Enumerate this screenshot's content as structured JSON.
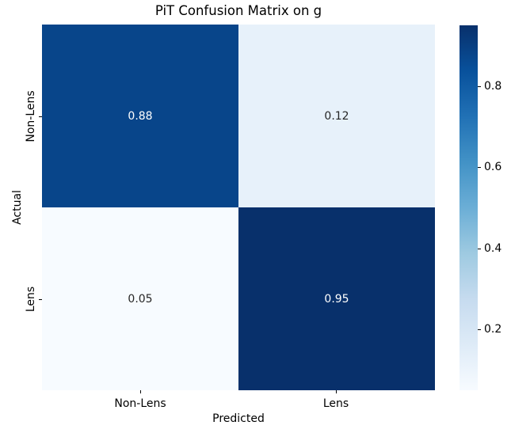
{
  "chart_data": {
    "type": "heatmap",
    "title": "PiT Confusion Matrix on g",
    "xlabel": "Predicted",
    "ylabel": "Actual",
    "x_categories": [
      "Non-Lens",
      "Lens"
    ],
    "y_categories": [
      "Non-Lens",
      "Lens"
    ],
    "matrix": [
      [
        0.88,
        0.12
      ],
      [
        0.05,
        0.95
      ]
    ],
    "cells": [
      {
        "row": "Non-Lens",
        "col": "Non-Lens",
        "value": "0.88",
        "bg": "#08458a",
        "fg": "#ffffff"
      },
      {
        "row": "Non-Lens",
        "col": "Lens",
        "value": "0.12",
        "bg": "#e7f1fa",
        "fg": "#262626"
      },
      {
        "row": "Lens",
        "col": "Non-Lens",
        "value": "0.05",
        "bg": "#f7fbff",
        "fg": "#262626"
      },
      {
        "row": "Lens",
        "col": "Lens",
        "value": "0.95",
        "bg": "#08306b",
        "fg": "#ffffff"
      }
    ],
    "colormap": "Blues",
    "grid": false,
    "legend": false,
    "colorbar": {
      "vmin": 0.05,
      "vmax": 0.95,
      "ticks": [
        {
          "label": "0.8",
          "pos_pct": 16.7
        },
        {
          "label": "0.6",
          "pos_pct": 38.9
        },
        {
          "label": "0.4",
          "pos_pct": 61.1
        },
        {
          "label": "0.2",
          "pos_pct": 83.3
        }
      ],
      "gradient": [
        "#08306b 0%",
        "#08519c 12.5%",
        "#2171b5 25%",
        "#4292c6 37.5%",
        "#6baed6 50%",
        "#9ecae1 62.5%",
        "#c6dbef 75%",
        "#deebf7 87.5%",
        "#f7fbff 100%"
      ]
    }
  }
}
